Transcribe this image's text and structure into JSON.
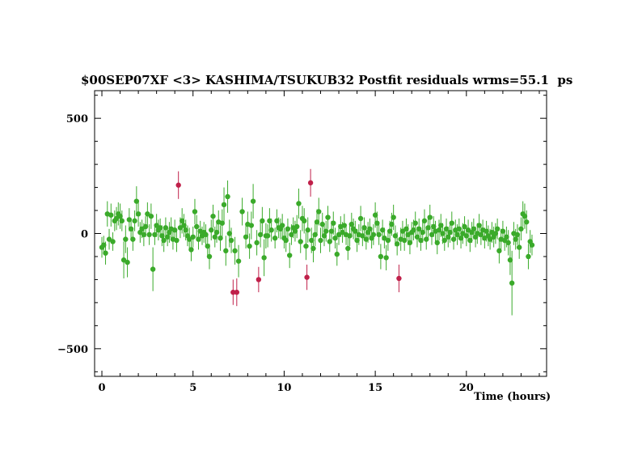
{
  "chart_data": {
    "type": "scatter",
    "title": "$00SEP07XF <3> KASHIMA/TSUKUB32 Postfit residuals wrms=55.1  ps",
    "xlabel": "Time (hours)",
    "ylabel": "",
    "xlim": [
      -0.4,
      24.4
    ],
    "ylim": [
      -620,
      620
    ],
    "x_ticks": [
      0,
      5,
      10,
      15,
      20
    ],
    "y_ticks": [
      -500,
      0,
      500
    ],
    "y_tick_labels": [
      "−500",
      "0",
      "500"
    ],
    "grid": false,
    "legend": "none",
    "colors": {
      "good": "#3aaa2a",
      "outlier": "#c0204a"
    },
    "series": [
      {
        "name": "",
        "color": "#3aaa2a",
        "points": [
          [
            0.0,
            -60,
            45
          ],
          [
            0.1,
            -50,
            40
          ],
          [
            0.2,
            -85,
            50
          ],
          [
            0.3,
            85,
            55
          ],
          [
            0.4,
            -25,
            45
          ],
          [
            0.5,
            80,
            50
          ],
          [
            0.6,
            -35,
            40
          ],
          [
            0.7,
            55,
            45
          ],
          [
            0.8,
            65,
            50
          ],
          [
            0.9,
            85,
            50
          ],
          [
            1.0,
            75,
            55
          ],
          [
            1.1,
            55,
            45
          ],
          [
            1.2,
            -115,
            80
          ],
          [
            1.3,
            -25,
            60
          ],
          [
            1.4,
            -125,
            65
          ],
          [
            1.5,
            60,
            50
          ],
          [
            1.6,
            20,
            45
          ],
          [
            1.7,
            -25,
            50
          ],
          [
            1.8,
            55,
            45
          ],
          [
            1.9,
            140,
            65
          ],
          [
            2.0,
            85,
            55
          ],
          [
            2.1,
            5,
            45
          ],
          [
            2.2,
            20,
            40
          ],
          [
            2.3,
            -5,
            50
          ],
          [
            2.4,
            30,
            45
          ],
          [
            2.5,
            85,
            50
          ],
          [
            2.6,
            -5,
            45
          ],
          [
            2.7,
            75,
            55
          ],
          [
            2.8,
            -155,
            95
          ],
          [
            2.9,
            -5,
            45
          ],
          [
            3.0,
            35,
            50
          ],
          [
            3.1,
            15,
            45
          ],
          [
            3.2,
            25,
            40
          ],
          [
            3.3,
            -10,
            45
          ],
          [
            3.4,
            -30,
            50
          ],
          [
            3.5,
            25,
            45
          ],
          [
            3.6,
            -15,
            40
          ],
          [
            3.7,
            5,
            45
          ],
          [
            3.8,
            20,
            50
          ],
          [
            3.9,
            -25,
            45
          ],
          [
            4.0,
            15,
            45
          ],
          [
            4.1,
            -30,
            50
          ],
          [
            4.3,
            25,
            45
          ],
          [
            4.4,
            55,
            55
          ],
          [
            4.5,
            35,
            50
          ],
          [
            4.6,
            15,
            45
          ],
          [
            4.7,
            -10,
            45
          ],
          [
            4.8,
            -25,
            50
          ],
          [
            4.9,
            -70,
            50
          ],
          [
            5.0,
            -15,
            45
          ],
          [
            5.1,
            95,
            55
          ],
          [
            5.2,
            30,
            50
          ],
          [
            5.3,
            -25,
            45
          ],
          [
            5.4,
            10,
            45
          ],
          [
            5.5,
            -10,
            40
          ],
          [
            5.6,
            5,
            45
          ],
          [
            5.7,
            -5,
            45
          ],
          [
            5.8,
            -55,
            50
          ],
          [
            5.9,
            -100,
            55
          ],
          [
            6.0,
            15,
            45
          ],
          [
            6.1,
            75,
            50
          ],
          [
            6.2,
            -15,
            45
          ],
          [
            6.3,
            5,
            45
          ],
          [
            6.4,
            50,
            50
          ],
          [
            6.5,
            -20,
            55
          ],
          [
            6.6,
            45,
            60
          ],
          [
            6.7,
            125,
            75
          ],
          [
            6.8,
            -75,
            65
          ],
          [
            6.9,
            160,
            70
          ],
          [
            7.0,
            0,
            60
          ],
          [
            7.1,
            -30,
            55
          ],
          [
            7.3,
            -75,
            60
          ],
          [
            7.5,
            -120,
            70
          ],
          [
            7.7,
            95,
            60
          ],
          [
            7.9,
            -15,
            50
          ],
          [
            8.0,
            40,
            55
          ],
          [
            8.1,
            -55,
            55
          ],
          [
            8.2,
            35,
            60
          ],
          [
            8.3,
            140,
            75
          ],
          [
            8.5,
            -40,
            55
          ],
          [
            8.7,
            -5,
            55
          ],
          [
            8.8,
            55,
            60
          ],
          [
            8.9,
            -105,
            80
          ],
          [
            9.0,
            -10,
            55
          ],
          [
            9.1,
            -10,
            50
          ],
          [
            9.2,
            55,
            55
          ],
          [
            9.3,
            15,
            50
          ],
          [
            9.5,
            -20,
            45
          ],
          [
            9.6,
            55,
            50
          ],
          [
            9.7,
            25,
            45
          ],
          [
            9.8,
            20,
            45
          ],
          [
            9.9,
            35,
            50
          ],
          [
            10.0,
            -20,
            45
          ],
          [
            10.1,
            -30,
            50
          ],
          [
            10.2,
            20,
            45
          ],
          [
            10.3,
            -95,
            55
          ],
          [
            10.4,
            -5,
            45
          ],
          [
            10.5,
            25,
            45
          ],
          [
            10.6,
            10,
            45
          ],
          [
            10.7,
            30,
            50
          ],
          [
            10.8,
            130,
            65
          ],
          [
            10.9,
            -35,
            50
          ],
          [
            11.0,
            65,
            55
          ],
          [
            11.1,
            55,
            55
          ],
          [
            11.2,
            -55,
            60
          ],
          [
            11.3,
            15,
            55
          ],
          [
            11.5,
            -30,
            55
          ],
          [
            11.6,
            -65,
            60
          ],
          [
            11.7,
            -5,
            50
          ],
          [
            11.8,
            50,
            55
          ],
          [
            11.9,
            95,
            60
          ],
          [
            12.0,
            -30,
            55
          ],
          [
            12.1,
            40,
            50
          ],
          [
            12.2,
            -10,
            45
          ],
          [
            12.3,
            10,
            45
          ],
          [
            12.4,
            70,
            50
          ],
          [
            12.5,
            -35,
            45
          ],
          [
            12.6,
            10,
            45
          ],
          [
            12.7,
            45,
            50
          ],
          [
            12.8,
            -20,
            45
          ],
          [
            12.9,
            -90,
            50
          ],
          [
            13.0,
            -5,
            45
          ],
          [
            13.1,
            30,
            45
          ],
          [
            13.2,
            5,
            45
          ],
          [
            13.3,
            35,
            50
          ],
          [
            13.4,
            -5,
            45
          ],
          [
            13.5,
            -65,
            50
          ],
          [
            13.6,
            -10,
            45
          ],
          [
            13.7,
            40,
            50
          ],
          [
            13.8,
            20,
            45
          ],
          [
            13.9,
            10,
            45
          ],
          [
            14.0,
            -30,
            50
          ],
          [
            14.1,
            -5,
            45
          ],
          [
            14.2,
            65,
            55
          ],
          [
            14.3,
            -10,
            45
          ],
          [
            14.4,
            25,
            45
          ],
          [
            14.5,
            -25,
            45
          ],
          [
            14.6,
            5,
            45
          ],
          [
            14.7,
            20,
            45
          ],
          [
            14.8,
            -20,
            45
          ],
          [
            14.9,
            -5,
            45
          ],
          [
            15.0,
            80,
            55
          ],
          [
            15.1,
            45,
            50
          ],
          [
            15.2,
            -5,
            45
          ],
          [
            15.3,
            -100,
            55
          ],
          [
            15.4,
            15,
            45
          ],
          [
            15.5,
            -20,
            45
          ],
          [
            15.6,
            -105,
            55
          ],
          [
            15.7,
            -30,
            45
          ],
          [
            15.8,
            10,
            45
          ],
          [
            15.9,
            40,
            50
          ],
          [
            16.0,
            70,
            55
          ],
          [
            16.1,
            -10,
            45
          ],
          [
            16.2,
            -45,
            50
          ],
          [
            16.4,
            -25,
            50
          ],
          [
            16.5,
            10,
            45
          ],
          [
            16.6,
            -30,
            45
          ],
          [
            16.7,
            20,
            45
          ],
          [
            16.8,
            -5,
            45
          ],
          [
            16.9,
            -40,
            50
          ],
          [
            17.0,
            5,
            45
          ],
          [
            17.1,
            15,
            45
          ],
          [
            17.2,
            45,
            50
          ],
          [
            17.3,
            -15,
            45
          ],
          [
            17.4,
            20,
            45
          ],
          [
            17.5,
            -30,
            45
          ],
          [
            17.6,
            5,
            45
          ],
          [
            17.7,
            55,
            50
          ],
          [
            17.8,
            -25,
            45
          ],
          [
            17.9,
            25,
            45
          ],
          [
            18.0,
            70,
            55
          ],
          [
            18.1,
            -5,
            45
          ],
          [
            18.2,
            30,
            45
          ],
          [
            18.3,
            10,
            45
          ],
          [
            18.4,
            -40,
            50
          ],
          [
            18.5,
            15,
            45
          ],
          [
            18.6,
            35,
            50
          ],
          [
            18.7,
            0,
            45
          ],
          [
            18.8,
            -30,
            45
          ],
          [
            18.9,
            20,
            45
          ],
          [
            19.0,
            -15,
            45
          ],
          [
            19.1,
            5,
            45
          ],
          [
            19.2,
            45,
            50
          ],
          [
            19.3,
            -25,
            45
          ],
          [
            19.4,
            15,
            45
          ],
          [
            19.5,
            -5,
            45
          ],
          [
            19.6,
            20,
            45
          ],
          [
            19.7,
            -20,
            45
          ],
          [
            19.8,
            0,
            45
          ],
          [
            19.9,
            30,
            45
          ],
          [
            20.0,
            -10,
            45
          ],
          [
            20.1,
            15,
            45
          ],
          [
            20.2,
            -30,
            50
          ],
          [
            20.3,
            5,
            45
          ],
          [
            20.4,
            20,
            45
          ],
          [
            20.5,
            -15,
            45
          ],
          [
            20.6,
            0,
            45
          ],
          [
            20.7,
            35,
            50
          ],
          [
            20.8,
            -5,
            45
          ],
          [
            20.9,
            15,
            45
          ],
          [
            21.0,
            -20,
            45
          ],
          [
            21.1,
            10,
            45
          ],
          [
            21.2,
            -10,
            45
          ],
          [
            21.3,
            -25,
            45
          ],
          [
            21.4,
            5,
            45
          ],
          [
            21.5,
            -15,
            45
          ],
          [
            21.6,
            0,
            45
          ],
          [
            21.7,
            20,
            45
          ],
          [
            21.8,
            -75,
            55
          ],
          [
            21.9,
            -25,
            45
          ],
          [
            22.0,
            10,
            45
          ],
          [
            22.1,
            -30,
            45
          ],
          [
            22.2,
            -15,
            45
          ],
          [
            22.3,
            -40,
            55
          ],
          [
            22.4,
            -115,
            65
          ],
          [
            22.5,
            -215,
            140
          ],
          [
            22.6,
            0,
            50
          ],
          [
            22.7,
            -25,
            45
          ],
          [
            22.8,
            -5,
            45
          ],
          [
            22.9,
            -60,
            50
          ],
          [
            23.0,
            20,
            50
          ],
          [
            23.1,
            85,
            55
          ],
          [
            23.2,
            75,
            55
          ],
          [
            23.3,
            50,
            50
          ],
          [
            23.4,
            -100,
            55
          ],
          [
            23.5,
            -35,
            50
          ],
          [
            23.6,
            -50,
            45
          ]
        ]
      },
      {
        "name": "",
        "color": "#c0204a",
        "points": [
          [
            4.2,
            210,
            60
          ],
          [
            7.2,
            -255,
            55
          ],
          [
            7.4,
            -255,
            60
          ],
          [
            8.6,
            -200,
            55
          ],
          [
            11.25,
            -190,
            55
          ],
          [
            11.45,
            220,
            60
          ],
          [
            16.3,
            -195,
            60
          ]
        ]
      }
    ]
  }
}
